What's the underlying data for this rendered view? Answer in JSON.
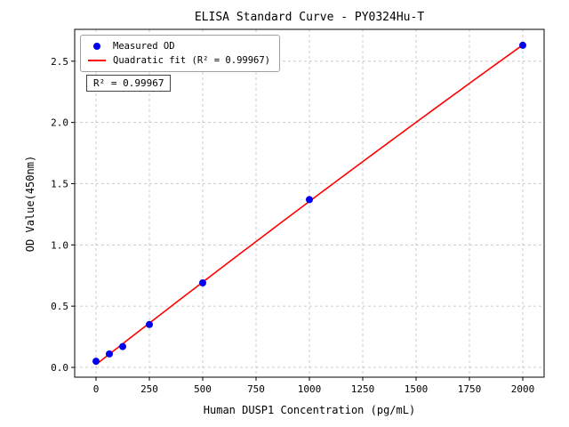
{
  "chart_data": {
    "type": "scatter",
    "title": "ELISA Standard Curve - PY0324Hu-T",
    "xlabel": "Human DUSP1 Concentration (pg/mL)",
    "ylabel": "OD Value(450nm)",
    "xlim": [
      -100,
      2100
    ],
    "ylim": [
      -0.08,
      2.76
    ],
    "xticks": [
      0,
      250,
      500,
      750,
      1000,
      1250,
      1500,
      1750,
      2000
    ],
    "yticks": [
      0.0,
      0.5,
      1.0,
      1.5,
      2.0,
      2.5
    ],
    "grid": true,
    "grid_style": "dashed",
    "legend_position": "upper left",
    "annotation": "R² = 0.99967",
    "series": [
      {
        "name": "Measured OD",
        "kind": "scatter",
        "color": "#0000ee",
        "x": [
          0,
          62.5,
          125,
          250,
          500,
          1000,
          2000
        ],
        "y": [
          0.05,
          0.11,
          0.17,
          0.35,
          0.69,
          1.37,
          2.63
        ]
      },
      {
        "name": "Quadratic fit (R² = 0.99967)",
        "kind": "quadratic-fit",
        "color": "#ff0000",
        "fit_r_squared": "0.99967",
        "fit_x_range": [
          0,
          2000
        ]
      }
    ],
    "colors": {
      "grid": "#bfbfbf",
      "axes_border": "#000000",
      "background": "#ffffff"
    }
  }
}
